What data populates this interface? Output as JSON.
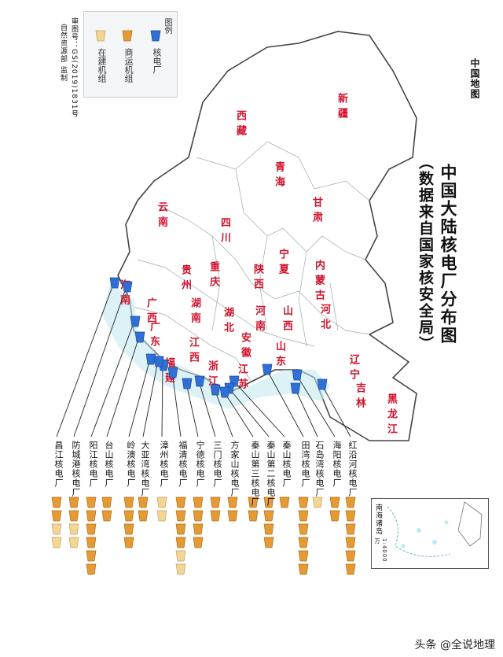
{
  "title_main": "中国大陆核电厂分布图",
  "title_sub": "（数据来自国家核安全局）",
  "map_name": "中国地图",
  "approval": {
    "line1": "审图号：GS(2019)1831号",
    "line2": "自然资源部  监制"
  },
  "legend": {
    "heading": "图例",
    "items": [
      {
        "label": "核电厂",
        "color": "#2f6fd6"
      },
      {
        "label": "商运机组",
        "color": "#e59a33"
      },
      {
        "label": "在建机组",
        "color": "#f3d596"
      }
    ]
  },
  "provinces": [
    {
      "name": "新疆"
    },
    {
      "name": "西藏"
    },
    {
      "name": "青海"
    },
    {
      "name": "甘肃"
    },
    {
      "name": "四川"
    },
    {
      "name": "云南"
    },
    {
      "name": "内蒙古"
    },
    {
      "name": "宁夏"
    },
    {
      "name": "陕西"
    },
    {
      "name": "山西"
    },
    {
      "name": "河北"
    },
    {
      "name": "河南"
    },
    {
      "name": "湖北"
    },
    {
      "name": "湖南"
    },
    {
      "name": "贵州"
    },
    {
      "name": "重庆"
    },
    {
      "name": "广西"
    },
    {
      "name": "广东"
    },
    {
      "name": "海南"
    },
    {
      "name": "江西"
    },
    {
      "name": "福建"
    },
    {
      "name": "浙江"
    },
    {
      "name": "安徽"
    },
    {
      "name": "江苏"
    },
    {
      "name": "山东"
    },
    {
      "name": "辽宁"
    },
    {
      "name": "吉林"
    },
    {
      "name": "黑龙江"
    }
  ],
  "plants": [
    {
      "name": "红沿河核电厂",
      "operating": 6,
      "construction": 0
    },
    {
      "name": "海阳核电厂",
      "operating": 2,
      "construction": 0
    },
    {
      "name": "石岛湾核电厂",
      "operating": 0,
      "construction": 1
    },
    {
      "name": "田湾核电厂",
      "operating": 6,
      "construction": 0
    },
    {
      "name": "秦山核电厂",
      "operating": 1,
      "construction": 0
    },
    {
      "name": "秦山第二核电厂",
      "operating": 4,
      "construction": 0
    },
    {
      "name": "秦山第三核电厂",
      "operating": 2,
      "construction": 0
    },
    {
      "name": "方家山核电厂",
      "operating": 2,
      "construction": 0
    },
    {
      "name": "三门核电厂",
      "operating": 2,
      "construction": 0
    },
    {
      "name": "宁德核电厂",
      "operating": 4,
      "construction": 0
    },
    {
      "name": "福清核电厂",
      "operating": 4,
      "construction": 2
    },
    {
      "name": "漳州核电厂",
      "operating": 0,
      "construction": 2
    },
    {
      "name": "大亚湾核电厂",
      "operating": 2,
      "construction": 0
    },
    {
      "name": "岭澳核电厂",
      "operating": 4,
      "construction": 0
    },
    {
      "name": "台山核电厂",
      "operating": 2,
      "construction": 0
    },
    {
      "name": "阳江核电厂",
      "operating": 6,
      "construction": 0
    },
    {
      "name": "防城港核电厂",
      "operating": 2,
      "construction": 2
    },
    {
      "name": "昌江核电厂",
      "operating": 2,
      "construction": 2
    }
  ],
  "inset": {
    "title": "南海诸岛",
    "scale": "1:4000万"
  },
  "watermark": "头条 @全说地理"
}
